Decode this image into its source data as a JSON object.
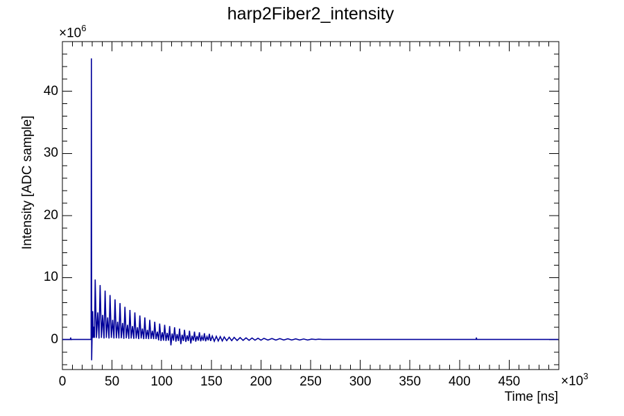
{
  "title": "harp2Fiber2_intensity",
  "colors": {
    "signal": "#00009a",
    "axis": "#000000",
    "background": "#ffffff",
    "text": "#000000"
  },
  "chart_data": {
    "type": "line",
    "title": "harp2Fiber2_intensity",
    "xlabel": "Time [ns]",
    "ylabel": "Intensity [ADC sample]",
    "x_exponent": {
      "mantissa": "×10",
      "exp": "3"
    },
    "y_exponent": {
      "mantissa": "×10",
      "exp": "6"
    },
    "xlim": [
      0,
      500
    ],
    "ylim": [
      -4.8,
      48.0
    ],
    "x_unit_scale": "1e3",
    "y_unit_scale": "1e6",
    "grid": false,
    "legend": null,
    "x_major_ticks": [
      0,
      50,
      100,
      150,
      200,
      250,
      300,
      350,
      400,
      450,
      500
    ],
    "x_tick_labels": [
      "0",
      "50",
      "100",
      "150",
      "200",
      "250",
      "300",
      "350",
      "400",
      "450",
      ""
    ],
    "x_minor_step": 10,
    "y_major_ticks": [
      0,
      10,
      20,
      30,
      40
    ],
    "y_tick_labels": [
      "0",
      "10",
      "20",
      "30",
      "40"
    ],
    "y_minor_step": 2,
    "points": [
      [
        0,
        0.05
      ],
      [
        8,
        0.05
      ],
      [
        8.3,
        0.35
      ],
      [
        8.6,
        0.05
      ],
      [
        28.9,
        0.05
      ],
      [
        29.2,
        45.3
      ],
      [
        29.45,
        -3.3
      ],
      [
        29.9,
        0.25
      ],
      [
        30.5,
        4.6
      ],
      [
        31.0,
        0.3
      ],
      [
        31.8,
        2.1
      ],
      [
        32.3,
        0.3
      ],
      [
        33,
        9.7
      ],
      [
        34.3,
        0.3
      ],
      [
        35.6,
        4.4
      ],
      [
        36.9,
        0.2
      ],
      [
        38,
        8.8
      ],
      [
        39.3,
        0.3
      ],
      [
        40.6,
        4.0
      ],
      [
        41.9,
        0.2
      ],
      [
        43,
        7.9
      ],
      [
        44.3,
        0.3
      ],
      [
        45.6,
        3.6
      ],
      [
        46.9,
        0.2
      ],
      [
        48,
        7.2
      ],
      [
        49.3,
        0.3
      ],
      [
        50.6,
        3.2
      ],
      [
        51.9,
        0.2
      ],
      [
        53,
        6.5
      ],
      [
        54.3,
        0.25
      ],
      [
        55.6,
        2.9
      ],
      [
        56.9,
        0.2
      ],
      [
        58,
        5.9
      ],
      [
        59.3,
        0.25
      ],
      [
        60.6,
        2.7
      ],
      [
        61.9,
        0.15
      ],
      [
        63,
        5.3
      ],
      [
        64.3,
        0.25
      ],
      [
        65.6,
        2.4
      ],
      [
        66.9,
        0.15
      ],
      [
        68,
        4.8
      ],
      [
        69.3,
        0.2
      ],
      [
        70.6,
        2.2
      ],
      [
        71.9,
        0.15
      ],
      [
        73,
        4.4
      ],
      [
        74.3,
        0.2
      ],
      [
        75.6,
        2.0
      ],
      [
        76.9,
        0.1
      ],
      [
        78,
        3.9
      ],
      [
        79.3,
        0.2
      ],
      [
        80.6,
        1.8
      ],
      [
        81.9,
        0.1
      ],
      [
        83,
        3.6
      ],
      [
        84.3,
        0.15
      ],
      [
        85.6,
        1.6
      ],
      [
        86.9,
        0.1
      ],
      [
        88,
        3.2
      ],
      [
        89.3,
        0.15
      ],
      [
        90.6,
        1.45
      ],
      [
        91.9,
        0.1
      ],
      [
        93,
        2.9
      ],
      [
        94.3,
        0.1
      ],
      [
        95.6,
        1.3
      ],
      [
        96.9,
        -0.1
      ],
      [
        98,
        2.6
      ],
      [
        99.3,
        -0.2
      ],
      [
        100.6,
        1.2
      ],
      [
        101.9,
        -0.15
      ],
      [
        103,
        2.4
      ],
      [
        104.3,
        -0.2
      ],
      [
        105.6,
        1.1
      ],
      [
        106.9,
        -0.15
      ],
      [
        108,
        2.2
      ],
      [
        109.3,
        -0.9
      ],
      [
        110.6,
        1.0
      ],
      [
        111.9,
        -0.15
      ],
      [
        113,
        2.0
      ],
      [
        114.3,
        -0.3
      ],
      [
        115.6,
        0.9
      ],
      [
        116.9,
        -0.2
      ],
      [
        118,
        1.8
      ],
      [
        119.3,
        -0.7
      ],
      [
        120.6,
        0.8
      ],
      [
        121.9,
        -0.2
      ],
      [
        123,
        1.6
      ],
      [
        124.3,
        -0.35
      ],
      [
        125.6,
        0.7
      ],
      [
        126.9,
        -0.2
      ],
      [
        128,
        1.45
      ],
      [
        129.3,
        -0.6
      ],
      [
        130.6,
        0.65
      ],
      [
        131.9,
        -0.15
      ],
      [
        133,
        1.3
      ],
      [
        134.3,
        -0.3
      ],
      [
        135.6,
        0.6
      ],
      [
        136.9,
        -0.15
      ],
      [
        138,
        1.2
      ],
      [
        139.3,
        -0.25
      ],
      [
        140.6,
        0.55
      ],
      [
        141.9,
        -0.15
      ],
      [
        143,
        1.05
      ],
      [
        144.3,
        -0.25
      ],
      [
        145.6,
        0.5
      ],
      [
        146.9,
        -0.1
      ],
      [
        148,
        0.95
      ],
      [
        149.3,
        -0.2
      ],
      [
        151,
        0.6
      ],
      [
        153,
        -0.25
      ],
      [
        155,
        0.55
      ],
      [
        157,
        -0.2
      ],
      [
        159,
        0.5
      ],
      [
        161,
        -0.2
      ],
      [
        163,
        0.45
      ],
      [
        165.5,
        -0.15
      ],
      [
        168,
        0.4
      ],
      [
        170.5,
        -0.15
      ],
      [
        173,
        0.38
      ],
      [
        176,
        -0.12
      ],
      [
        179,
        0.35
      ],
      [
        182,
        -0.1
      ],
      [
        185,
        0.3
      ],
      [
        188,
        -0.1
      ],
      [
        191,
        0.28
      ],
      [
        194,
        -0.08
      ],
      [
        197,
        0.25
      ],
      [
        200,
        -0.08
      ],
      [
        203,
        0.22
      ],
      [
        207,
        -0.06
      ],
      [
        211,
        0.2
      ],
      [
        215,
        -0.06
      ],
      [
        219,
        0.18
      ],
      [
        223,
        -0.05
      ],
      [
        227,
        0.16
      ],
      [
        231,
        -0.05
      ],
      [
        235,
        0.14
      ],
      [
        239,
        -0.04
      ],
      [
        243,
        0.12
      ],
      [
        247,
        -0.04
      ],
      [
        251,
        0.1
      ],
      [
        255,
        0.03
      ],
      [
        258,
        0.09
      ],
      [
        262,
        0.04
      ],
      [
        270,
        0.05
      ],
      [
        300,
        0.05
      ],
      [
        350,
        0.05
      ],
      [
        416.6,
        0.05
      ],
      [
        417,
        0.35
      ],
      [
        417.4,
        0.05
      ],
      [
        499.5,
        0.05
      ]
    ]
  }
}
